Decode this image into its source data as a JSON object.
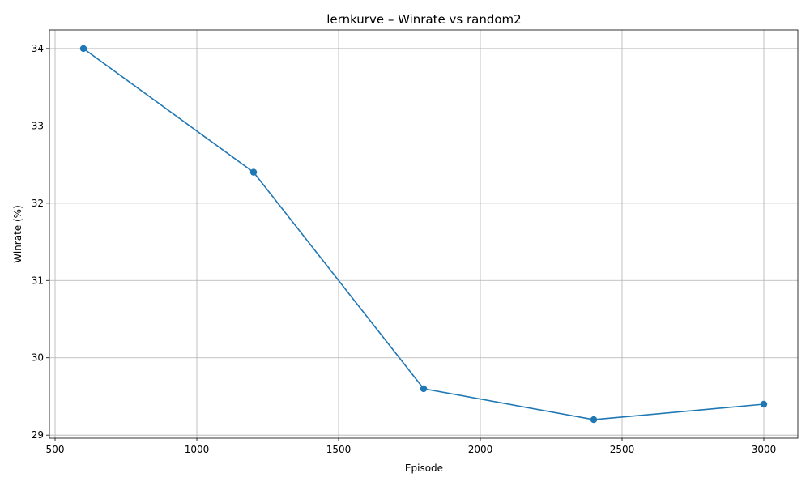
{
  "chart_data": {
    "type": "line",
    "title": "lernkurve – Winrate vs random2",
    "xlabel": "Episode",
    "ylabel": "Winrate (%)",
    "x": [
      600,
      1200,
      1800,
      2400,
      3000
    ],
    "series": [
      {
        "values": [
          34.0,
          32.4,
          29.6,
          29.2,
          29.4
        ],
        "color": "#1f77b4",
        "marker": "circle"
      }
    ],
    "xlim": [
      480,
      3120
    ],
    "ylim": [
      28.96,
      34.24
    ],
    "xticks": [
      500,
      1000,
      1500,
      2000,
      2500,
      3000
    ],
    "yticks": [
      29,
      30,
      31,
      32,
      33,
      34
    ],
    "grid": true
  }
}
